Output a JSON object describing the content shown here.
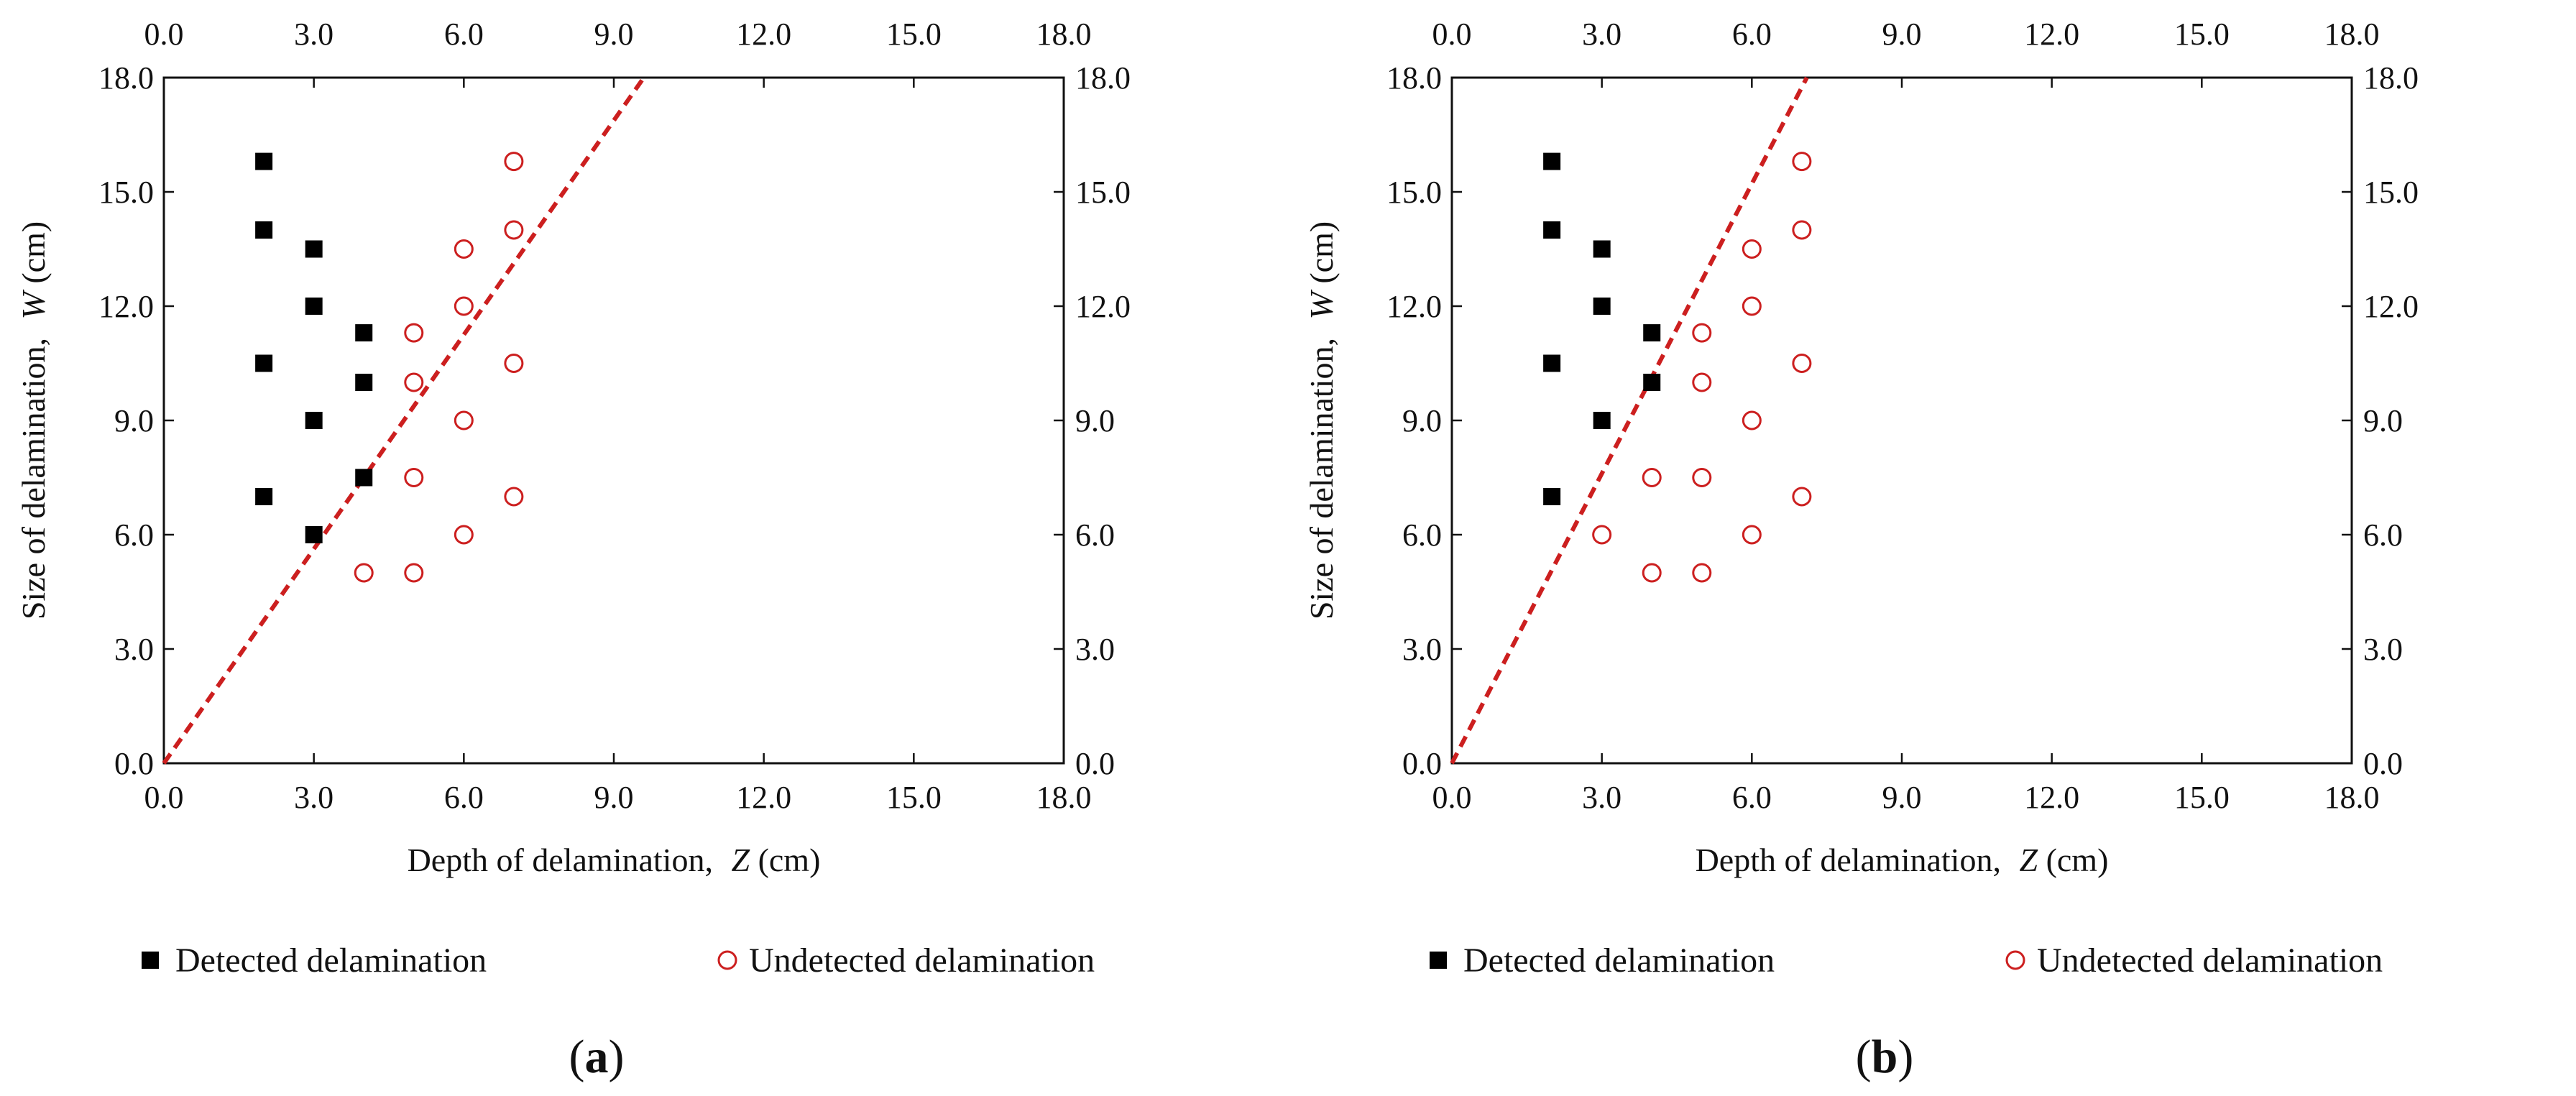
{
  "colors": {
    "detected": "#000000",
    "undetected": "#cc1f1f",
    "trend": "#cc1f1f",
    "axis": "#111111"
  },
  "chart_data": [
    {
      "id": "a",
      "type": "scatter",
      "panel_label": "a",
      "xlabel_prefix": "Depth of delamination,",
      "xlabel_var": "Z",
      "xlabel_unit": "(cm)",
      "ylabel_prefix": "Size of delamination,",
      "ylabel_var": "W",
      "ylabel_unit": "(cm)",
      "xlim": [
        0,
        18
      ],
      "ylim": [
        0,
        18
      ],
      "ticks": [
        "0.0",
        "3.0",
        "6.0",
        "9.0",
        "12.0",
        "15.0",
        "18.0"
      ],
      "grid": false,
      "legend": {
        "position": "bottom",
        "detected": "Detected delamination",
        "undetected": "Undetected delamination"
      },
      "trend_line": {
        "style": "dashed",
        "x": [
          0,
          9.6
        ],
        "y": [
          0,
          18
        ]
      },
      "series": [
        {
          "name": "Detected delamination",
          "marker": "filled-square",
          "points": [
            [
              2,
              15.8
            ],
            [
              2,
              14.0
            ],
            [
              2,
              10.5
            ],
            [
              2,
              7.0
            ],
            [
              3,
              13.5
            ],
            [
              3,
              12.0
            ],
            [
              3,
              9.0
            ],
            [
              3,
              6.0
            ],
            [
              4,
              11.3
            ],
            [
              4,
              10.0
            ],
            [
              4,
              7.5
            ]
          ]
        },
        {
          "name": "Undetected delamination",
          "marker": "open-circle",
          "points": [
            [
              5,
              11.3
            ],
            [
              5,
              10.0
            ],
            [
              5,
              7.5
            ],
            [
              5,
              5.0
            ],
            [
              4,
              5.0
            ],
            [
              6,
              13.5
            ],
            [
              6,
              12.0
            ],
            [
              6,
              9.0
            ],
            [
              6,
              6.0
            ],
            [
              7,
              15.8
            ],
            [
              7,
              14.0
            ],
            [
              7,
              10.5
            ],
            [
              7,
              7.0
            ]
          ]
        }
      ]
    },
    {
      "id": "b",
      "type": "scatter",
      "panel_label": "b",
      "xlabel_prefix": "Depth of delamination,",
      "xlabel_var": "Z",
      "xlabel_unit": "(cm)",
      "ylabel_prefix": "Size of delamination,",
      "ylabel_var": "W",
      "ylabel_unit": "(cm)",
      "xlim": [
        0,
        18
      ],
      "ylim": [
        0,
        18
      ],
      "ticks": [
        "0.0",
        "3.0",
        "6.0",
        "9.0",
        "12.0",
        "15.0",
        "18.0"
      ],
      "grid": false,
      "legend": {
        "position": "bottom",
        "detected": "Detected delamination",
        "undetected": "Undetected delamination"
      },
      "trend_line": {
        "style": "dashed",
        "x": [
          0,
          7.1
        ],
        "y": [
          0,
          18
        ]
      },
      "series": [
        {
          "name": "Detected delamination",
          "marker": "filled-square",
          "points": [
            [
              2,
              15.8
            ],
            [
              2,
              14.0
            ],
            [
              2,
              10.5
            ],
            [
              2,
              7.0
            ],
            [
              3,
              13.5
            ],
            [
              3,
              12.0
            ],
            [
              3,
              9.0
            ],
            [
              4,
              11.3
            ],
            [
              4,
              10.0
            ]
          ]
        },
        {
          "name": "Undetected delamination",
          "marker": "open-circle",
          "points": [
            [
              3,
              6.0
            ],
            [
              4,
              7.5
            ],
            [
              4,
              5.0
            ],
            [
              5,
              11.3
            ],
            [
              5,
              10.0
            ],
            [
              5,
              7.5
            ],
            [
              5,
              5.0
            ],
            [
              6,
              13.5
            ],
            [
              6,
              12.0
            ],
            [
              6,
              9.0
            ],
            [
              6,
              6.0
            ],
            [
              7,
              15.8
            ],
            [
              7,
              14.0
            ],
            [
              7,
              10.5
            ],
            [
              7,
              7.0
            ]
          ]
        }
      ]
    }
  ]
}
